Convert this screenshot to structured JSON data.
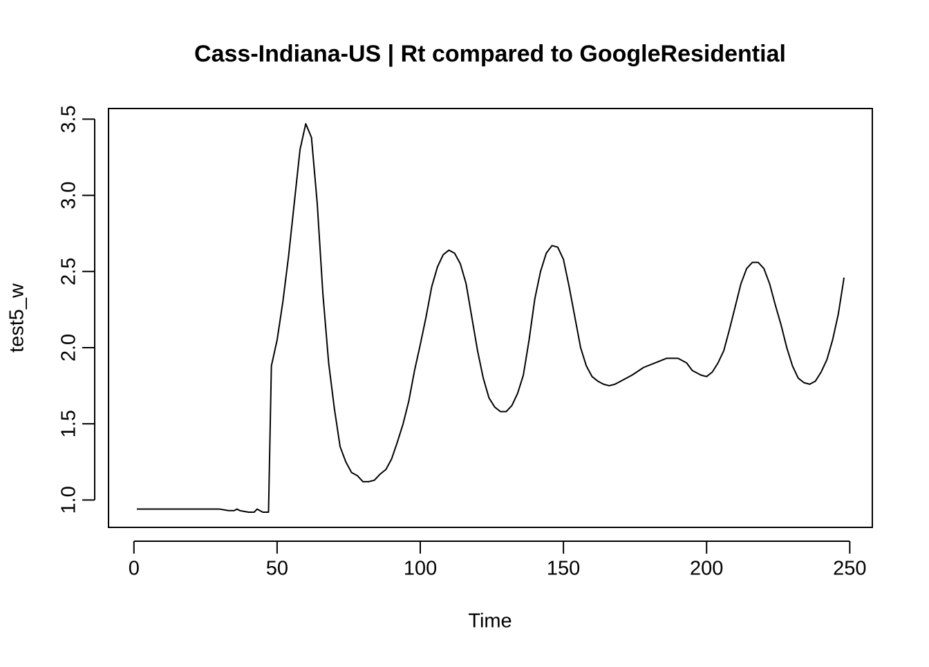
{
  "chart_data": {
    "type": "line",
    "title": "Cass-Indiana-US | Rt compared to GoogleResidential",
    "x_label": "Time",
    "y_label": "test5_w",
    "xlim": [
      -8.88,
      257.88
    ],
    "ylim": [
      0.82,
      3.57
    ],
    "xticks": [
      0,
      50,
      100,
      150,
      200,
      250
    ],
    "yticks": [
      {
        "value": 1,
        "label": "1.0"
      },
      1.5,
      {
        "value": 2,
        "label": "2.0"
      },
      2.5,
      {
        "value": 3,
        "label": "3.0"
      },
      3.5
    ],
    "grid": false,
    "x": [
      1,
      5,
      10,
      15,
      20,
      25,
      30,
      33,
      35,
      36,
      37,
      40,
      42,
      43,
      44,
      45,
      47,
      48,
      50,
      52,
      54,
      56,
      58,
      60,
      62,
      64,
      66,
      68,
      70,
      72,
      74,
      76,
      78,
      80,
      82,
      84,
      86,
      88,
      90,
      92,
      94,
      96,
      98,
      100,
      102,
      104,
      106,
      108,
      110,
      112,
      114,
      116,
      118,
      120,
      122,
      124,
      126,
      128,
      130,
      132,
      134,
      136,
      138,
      140,
      142,
      144,
      146,
      148,
      150,
      152,
      154,
      156,
      158,
      160,
      162,
      164,
      166,
      168,
      170,
      174,
      178,
      182,
      186,
      190,
      193,
      195,
      198,
      200,
      202,
      204,
      206,
      208,
      210,
      212,
      214,
      216,
      218,
      220,
      222,
      224,
      226,
      228,
      230,
      232,
      234,
      236,
      238,
      240,
      242,
      244,
      246,
      248
    ],
    "series": [
      {
        "name": "test5_w",
        "color": "#000000",
        "values": [
          0.94,
          0.94,
          0.94,
          0.94,
          0.94,
          0.94,
          0.94,
          0.93,
          0.93,
          0.94,
          0.93,
          0.92,
          0.92,
          0.94,
          0.93,
          0.92,
          0.92,
          1.88,
          2.05,
          2.3,
          2.6,
          2.95,
          3.3,
          3.47,
          3.38,
          2.95,
          2.35,
          1.9,
          1.6,
          1.35,
          1.25,
          1.18,
          1.16,
          1.12,
          1.12,
          1.13,
          1.17,
          1.2,
          1.27,
          1.38,
          1.5,
          1.65,
          1.85,
          2.02,
          2.2,
          2.4,
          2.53,
          2.61,
          2.64,
          2.62,
          2.55,
          2.42,
          2.2,
          1.98,
          1.8,
          1.67,
          1.61,
          1.58,
          1.58,
          1.62,
          1.7,
          1.82,
          2.05,
          2.32,
          2.5,
          2.62,
          2.67,
          2.66,
          2.58,
          2.4,
          2.2,
          2.0,
          1.88,
          1.81,
          1.78,
          1.76,
          1.75,
          1.76,
          1.78,
          1.82,
          1.87,
          1.9,
          1.93,
          1.93,
          1.9,
          1.85,
          1.82,
          1.81,
          1.84,
          1.9,
          1.98,
          2.12,
          2.27,
          2.42,
          2.52,
          2.56,
          2.56,
          2.52,
          2.42,
          2.28,
          2.15,
          2.0,
          1.88,
          1.8,
          1.77,
          1.76,
          1.78,
          1.84,
          1.92,
          2.05,
          2.22,
          2.46
        ]
      }
    ]
  }
}
